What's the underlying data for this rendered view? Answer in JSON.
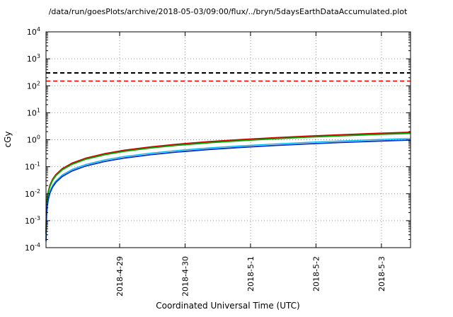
{
  "title": "/data/run/goesPlots/archive/2018-05-03/09:00/flux/../bryn/5daysEarthDataAccumulated.plot",
  "chart_data": {
    "type": "line",
    "title": "/data/run/goesPlots/archive/2018-05-03/09:00/flux/../bryn/5daysEarthDataAccumulated.plot",
    "xlabel": "Coordinated Universal Time (UTC)",
    "ylabel": "cGy",
    "y_scale": "log",
    "ylim_exponents": [
      -4,
      4
    ],
    "y_tick_exponents": [
      4,
      3,
      2,
      1,
      0,
      -1,
      -2,
      -3,
      -4
    ],
    "x_range_days": [
      0,
      5.57
    ],
    "x_ticks": [
      {
        "t": 1.125,
        "label": "2018-4-29"
      },
      {
        "t": 2.125,
        "label": "2018-4-30"
      },
      {
        "t": 3.125,
        "label": "2018-5-1"
      },
      {
        "t": 4.125,
        "label": "2018-5-2"
      },
      {
        "t": 5.125,
        "label": "2018-5-3"
      }
    ],
    "grid": true,
    "legend": "none",
    "reference_lines": [
      {
        "name": "upper-threshold",
        "value": 300,
        "color": "#000000",
        "width": 2.2,
        "dash": "6,4"
      },
      {
        "name": "lower-threshold",
        "value": 150,
        "color": "#ff0000",
        "width": 1.6,
        "dash": "6,4"
      }
    ],
    "t_days": [
      0.001,
      0.003,
      0.006,
      0.01,
      0.02,
      0.035,
      0.06,
      0.1,
      0.15,
      0.25,
      0.4,
      0.6,
      0.9,
      1.2,
      1.6,
      2.0,
      2.5,
      3.0,
      3.5,
      4.0,
      4.5,
      5.0,
      5.57
    ],
    "series": [
      {
        "name": "accumulated-dose-red",
        "color": "#cc0000",
        "width": 1.8,
        "values": [
          0.00034,
          0.00102,
          0.00204,
          0.0034,
          0.0068,
          0.0119,
          0.0204,
          0.034,
          0.051,
          0.085,
          0.136,
          0.204,
          0.306,
          0.408,
          0.544,
          0.68,
          0.85,
          1.02,
          1.19,
          1.36,
          1.53,
          1.7,
          1.894
        ]
      },
      {
        "name": "accumulated-dose-green",
        "color": "#00aa00",
        "width": 1.8,
        "values": [
          0.00031,
          0.00093,
          0.00186,
          0.0031,
          0.0062,
          0.0109,
          0.0186,
          0.031,
          0.0465,
          0.0775,
          0.124,
          0.186,
          0.279,
          0.372,
          0.496,
          0.62,
          0.775,
          0.93,
          1.085,
          1.24,
          1.395,
          1.55,
          1.727
        ]
      },
      {
        "name": "accumulated-dose-cyan",
        "color": "#00b8e8",
        "width": 1.4,
        "values": [
          0.0002,
          0.0006,
          0.0012,
          0.002,
          0.004,
          0.007,
          0.012,
          0.02,
          0.03,
          0.05,
          0.08,
          0.12,
          0.18,
          0.24,
          0.32,
          0.4,
          0.5,
          0.6,
          0.7,
          0.8,
          0.9,
          1.0,
          1.114
        ]
      },
      {
        "name": "accumulated-dose-blue",
        "color": "#0030d0",
        "width": 1.8,
        "values": [
          0.000175,
          0.000525,
          0.00105,
          0.00175,
          0.0035,
          0.00613,
          0.0105,
          0.0175,
          0.0263,
          0.0438,
          0.07,
          0.105,
          0.158,
          0.21,
          0.28,
          0.35,
          0.438,
          0.525,
          0.613,
          0.7,
          0.788,
          0.875,
          0.975
        ]
      }
    ]
  }
}
